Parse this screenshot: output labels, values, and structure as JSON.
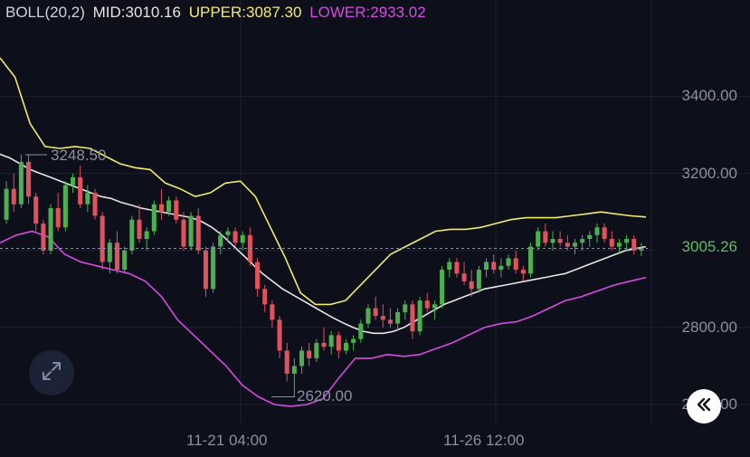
{
  "indicator": {
    "name": "BOLL(20,2)",
    "mid_label": "MID:",
    "mid_value": "3010.16",
    "upper_label": "UPPER:",
    "upper_value": "3087.30",
    "lower_label": "LOWER:",
    "lower_value": "2933.02"
  },
  "colors": {
    "background": "#0d0f1a",
    "up": "#4caf50",
    "down": "#e0525e",
    "mid": "#e6e6e6",
    "upper": "#f2ec6b",
    "lower": "#d64be0",
    "grid": "#1e2230",
    "axis_text": "#8b90a0",
    "price_line": "#5fbf5f"
  },
  "y_axis_labels": [
    "3400.00",
    "3200.00",
    "2800.00",
    "2600.00"
  ],
  "x_axis_labels": [
    "11-21 04:00",
    "11-26 12:00"
  ],
  "current_price": "3005.26",
  "high_marker": "3248.50",
  "low_marker": "2620.00",
  "icons": {
    "expand": "expand-icon",
    "jump": "jump-to-latest-icon"
  },
  "chart_data": {
    "type": "candlestick",
    "ylim": [
      2560,
      3580
    ],
    "y_ticks": [
      2600,
      2800,
      3200,
      3400
    ],
    "current_price": 3005.26,
    "high": 3248.5,
    "low": 2620.0,
    "candles": [
      [
        3080,
        3180,
        3070,
        3160
      ],
      [
        3160,
        3200,
        3100,
        3120
      ],
      [
        3120,
        3250,
        3110,
        3230
      ],
      [
        3230,
        3248.5,
        3120,
        3140
      ],
      [
        3140,
        3150,
        3050,
        3070
      ],
      [
        3070,
        3080,
        2990,
        3000
      ],
      [
        3000,
        3120,
        2990,
        3110
      ],
      [
        3110,
        3150,
        3050,
        3060
      ],
      [
        3060,
        3180,
        3050,
        3170
      ],
      [
        3170,
        3200,
        3150,
        3190
      ],
      [
        3190,
        3220,
        3110,
        3120
      ],
      [
        3120,
        3170,
        3100,
        3150
      ],
      [
        3150,
        3160,
        3080,
        3090
      ],
      [
        3090,
        3100,
        2950,
        2970
      ],
      [
        2970,
        3030,
        2940,
        3020
      ],
      [
        3020,
        3050,
        2940,
        2950
      ],
      [
        2950,
        3010,
        2940,
        3000
      ],
      [
        3000,
        3090,
        2990,
        3080
      ],
      [
        3080,
        3120,
        3020,
        3030
      ],
      [
        3030,
        3060,
        3000,
        3050
      ],
      [
        3050,
        3130,
        3040,
        3120
      ],
      [
        3120,
        3160,
        3080,
        3100
      ],
      [
        3100,
        3140,
        3090,
        3130
      ],
      [
        3130,
        3140,
        3070,
        3080
      ],
      [
        3080,
        3100,
        3000,
        3010
      ],
      [
        3010,
        3100,
        3000,
        3090
      ],
      [
        3090,
        3110,
        2990,
        3000
      ],
      [
        3000,
        3010,
        2880,
        2900
      ],
      [
        2900,
        3020,
        2890,
        3010
      ],
      [
        3010,
        3050,
        2990,
        3040
      ],
      [
        3040,
        3060,
        3020,
        3050
      ],
      [
        3050,
        3060,
        3010,
        3020
      ],
      [
        3020,
        3050,
        3000,
        3040
      ],
      [
        3040,
        3060,
        2960,
        2970
      ],
      [
        2970,
        2980,
        2880,
        2900
      ],
      [
        2900,
        2910,
        2840,
        2860
      ],
      [
        2860,
        2870,
        2800,
        2820
      ],
      [
        2820,
        2830,
        2720,
        2740
      ],
      [
        2740,
        2760,
        2660,
        2680
      ],
      [
        2680,
        2720,
        2620,
        2700
      ],
      [
        2700,
        2750,
        2680,
        2740
      ],
      [
        2740,
        2760,
        2700,
        2720
      ],
      [
        2720,
        2770,
        2710,
        2760
      ],
      [
        2760,
        2800,
        2740,
        2750
      ],
      [
        2750,
        2790,
        2730,
        2780
      ],
      [
        2780,
        2790,
        2720,
        2740
      ],
      [
        2740,
        2770,
        2730,
        2760
      ],
      [
        2760,
        2780,
        2740,
        2770
      ],
      [
        2770,
        2820,
        2760,
        2810
      ],
      [
        2810,
        2860,
        2800,
        2850
      ],
      [
        2850,
        2880,
        2820,
        2830
      ],
      [
        2830,
        2860,
        2800,
        2820
      ],
      [
        2820,
        2850,
        2800,
        2810
      ],
      [
        2810,
        2850,
        2790,
        2840
      ],
      [
        2840,
        2870,
        2820,
        2860
      ],
      [
        2860,
        2870,
        2770,
        2790
      ],
      [
        2790,
        2880,
        2780,
        2870
      ],
      [
        2870,
        2890,
        2840,
        2850
      ],
      [
        2850,
        2870,
        2820,
        2860
      ],
      [
        2860,
        2960,
        2850,
        2950
      ],
      [
        2950,
        2980,
        2930,
        2970
      ],
      [
        2970,
        2980,
        2930,
        2940
      ],
      [
        2940,
        2970,
        2910,
        2920
      ],
      [
        2920,
        2950,
        2880,
        2900
      ],
      [
        2900,
        2960,
        2890,
        2950
      ],
      [
        2950,
        2980,
        2930,
        2970
      ],
      [
        2970,
        2990,
        2940,
        2950
      ],
      [
        2950,
        2980,
        2930,
        2960
      ],
      [
        2960,
        2990,
        2950,
        2980
      ],
      [
        2980,
        3000,
        2940,
        2950
      ],
      [
        2950,
        2960,
        2920,
        2940
      ],
      [
        2940,
        3020,
        2930,
        3010
      ],
      [
        3010,
        3060,
        3000,
        3050
      ],
      [
        3050,
        3070,
        3010,
        3020
      ],
      [
        3020,
        3050,
        3000,
        3030
      ],
      [
        3030,
        3050,
        3010,
        3020
      ],
      [
        3020,
        3040,
        3000,
        3010
      ],
      [
        3010,
        3030,
        2990,
        3020
      ],
      [
        3020,
        3040,
        3000,
        3030
      ],
      [
        3030,
        3050,
        3010,
        3040
      ],
      [
        3040,
        3070,
        3020,
        3060
      ],
      [
        3060,
        3070,
        3020,
        3030
      ],
      [
        3030,
        3050,
        3000,
        3010
      ],
      [
        3010,
        3030,
        2990,
        3020
      ],
      [
        3020,
        3040,
        3000,
        3030
      ],
      [
        3030,
        3040,
        2990,
        3000
      ],
      [
        3000,
        3020,
        2985,
        3005.26
      ]
    ],
    "mid_band": [
      3250,
      3240,
      3225,
      3210,
      3200,
      3190,
      3180,
      3170,
      3160,
      3150,
      3140,
      3135,
      3125,
      3118,
      3110,
      3105,
      3100,
      3095,
      3090,
      3085,
      3075,
      3060,
      3040,
      3015,
      2990,
      2965,
      2940,
      2920,
      2900,
      2885,
      2870,
      2855,
      2840,
      2825,
      2812,
      2800,
      2790,
      2785,
      2785,
      2790,
      2800,
      2815,
      2830,
      2845,
      2860,
      2870,
      2880,
      2890,
      2900,
      2905,
      2910,
      2915,
      2920,
      2925,
      2930,
      2935,
      2940,
      2950,
      2960,
      2970,
      2980,
      2990,
      3000,
      3005,
      3010
    ],
    "upper_band": [
      3500,
      3450,
      3330,
      3270,
      3265,
      3270,
      3265,
      3245,
      3225,
      3215,
      3210,
      3175,
      3160,
      3140,
      3150,
      3175,
      3180,
      3140,
      3060,
      2980,
      2890,
      2860,
      2860,
      2870,
      2910,
      2950,
      2990,
      3010,
      3030,
      3050,
      3055,
      3055,
      3060,
      3070,
      3080,
      3085,
      3085,
      3085,
      3090,
      3095,
      3100,
      3095,
      3090,
      3087
    ],
    "lower_band": [
      3020,
      3040,
      3050,
      3035,
      2990,
      2970,
      2960,
      2950,
      2940,
      2920,
      2880,
      2820,
      2780,
      2740,
      2700,
      2650,
      2620,
      2600,
      2595,
      2600,
      2615,
      2670,
      2720,
      2720,
      2730,
      2725,
      2730,
      2745,
      2760,
      2780,
      2800,
      2810,
      2815,
      2830,
      2850,
      2870,
      2880,
      2895,
      2910,
      2920,
      2930
    ]
  }
}
